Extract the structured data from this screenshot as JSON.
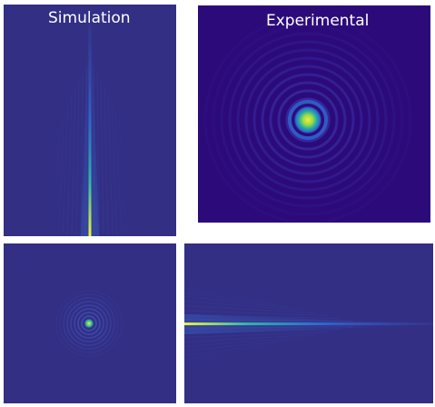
{
  "labels": {
    "simulation": "Simulation",
    "experimental": "Experimental"
  },
  "colors": {
    "sim_background": "#322f85",
    "exp_background": "#2c0a7a",
    "beam_core": "#f2ef3a",
    "beam_mid": "#2fb5a8",
    "beam_outer": "#2f6fd6"
  },
  "panels": [
    {
      "id": "simulation-xz-vertical",
      "content": "vertical beam profile"
    },
    {
      "id": "experimental-xy",
      "content": "ring pattern with bright center"
    },
    {
      "id": "simulation-xy",
      "content": "ring pattern with bright center"
    },
    {
      "id": "simulation-xz-horizontal",
      "content": "horizontal beam profile"
    }
  ]
}
